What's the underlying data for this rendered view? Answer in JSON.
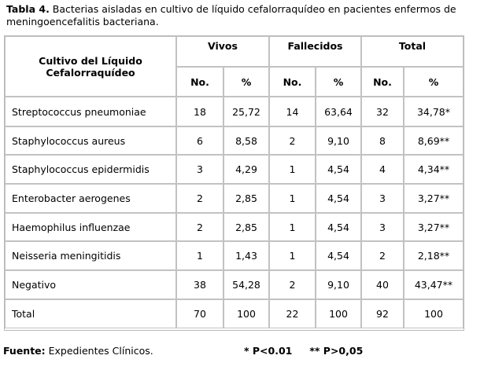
{
  "caption": {
    "label": "Tabla 4.",
    "text": " Bacterias aisladas en cultivo de líquido cefalorraquídeo en pacientes enfermos de meningoencefalitis bacteriana."
  },
  "table": {
    "row_header": "Cultivo del Líquido Cefalorraquídeo",
    "groups": [
      "Vivos",
      "Fallecidos",
      "Total"
    ],
    "subheaders": [
      "No.",
      "%",
      "No.",
      "%",
      "No.",
      "%"
    ],
    "rows": [
      {
        "name": "Streptococcus pneumoniae",
        "cells": [
          "18",
          "25,72",
          "14",
          "63,64",
          "32",
          "34,78*"
        ]
      },
      {
        "name": "Staphylococcus aureus",
        "cells": [
          "6",
          "8,58",
          "2",
          "9,10",
          "8",
          "8,69**"
        ]
      },
      {
        "name": "Staphylococcus epidermidis",
        "cells": [
          "3",
          "4,29",
          "1",
          "4,54",
          "4",
          "4,34**"
        ]
      },
      {
        "name": "Enterobacter aerogenes",
        "cells": [
          "2",
          "2,85",
          "1",
          "4,54",
          "3",
          "3,27**"
        ]
      },
      {
        "name": "Haemophilus influenzae",
        "cells": [
          "2",
          "2,85",
          "1",
          "4,54",
          "3",
          "3,27**"
        ]
      },
      {
        "name": "Neisseria meningitidis",
        "cells": [
          "1",
          "1,43",
          "1",
          "4,54",
          "2",
          "2,18**"
        ]
      },
      {
        "name": "Negativo",
        "cells": [
          "38",
          "54,28",
          "2",
          "9,10",
          "40",
          "43,47**"
        ]
      },
      {
        "name": "Total",
        "cells": [
          "70",
          "100",
          "22",
          "100",
          "92",
          "100"
        ]
      }
    ]
  },
  "footer": {
    "source_label": "Fuente:",
    "source_text": " Expedientes Clínicos.",
    "note1": "*  P<0.01",
    "note2": "** P>0,05"
  }
}
